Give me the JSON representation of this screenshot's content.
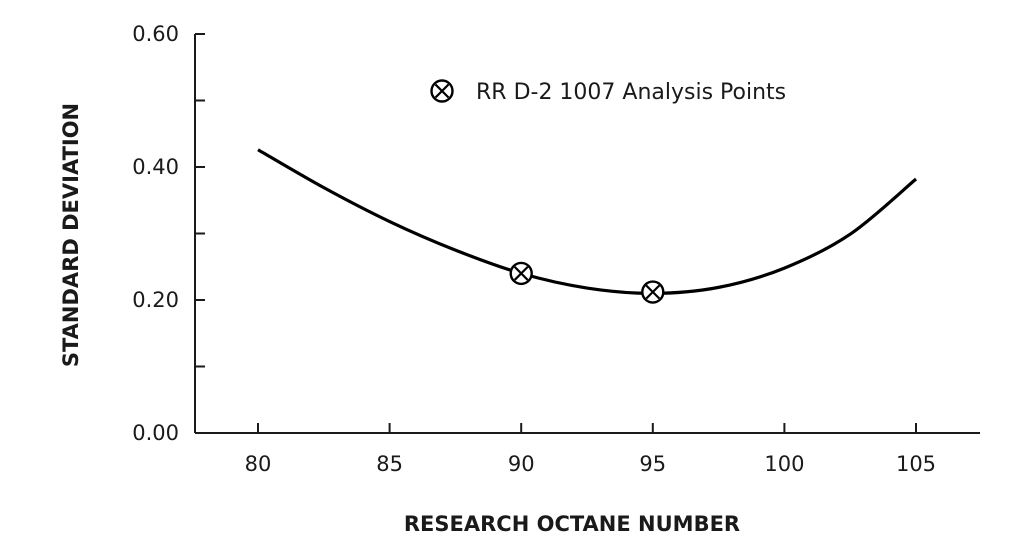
{
  "chart_data": {
    "type": "scatter",
    "xlabel": "RESEARCH OCTANE NUMBER",
    "ylabel": "STANDARD DEVIATION",
    "xlim": [
      77.5,
      107.5
    ],
    "ylim": [
      0,
      0.6
    ],
    "x_ticks": [
      "80",
      "85",
      "90",
      "95",
      "100",
      "105"
    ],
    "x_tick_values": [
      80,
      85,
      90,
      95,
      100,
      105
    ],
    "y_ticks": [
      "0.00",
      "0.20",
      "0.40",
      "0.60"
    ],
    "y_tick_values": [
      0,
      0.2,
      0.4,
      0.6
    ],
    "y_minor_tick_values": [
      0.1,
      0.3,
      0.5
    ],
    "grid": false,
    "legend": {
      "label": "RR  D-2  1007  Analysis Points",
      "placement": "top-center"
    },
    "series": [
      {
        "name": "RR  D-2  1007  Analysis Points",
        "kind": "points",
        "marker": "circle-x",
        "x": [
          90,
          95
        ],
        "y": [
          0.24,
          0.212
        ]
      },
      {
        "kind": "line",
        "x": [
          80,
          82.5,
          85,
          87.5,
          90,
          92.5,
          95,
          97.5,
          100,
          102.5,
          105
        ],
        "y": [
          0.426,
          0.369,
          0.318,
          0.275,
          0.24,
          0.218,
          0.21,
          0.219,
          0.248,
          0.299,
          0.382
        ]
      }
    ]
  }
}
